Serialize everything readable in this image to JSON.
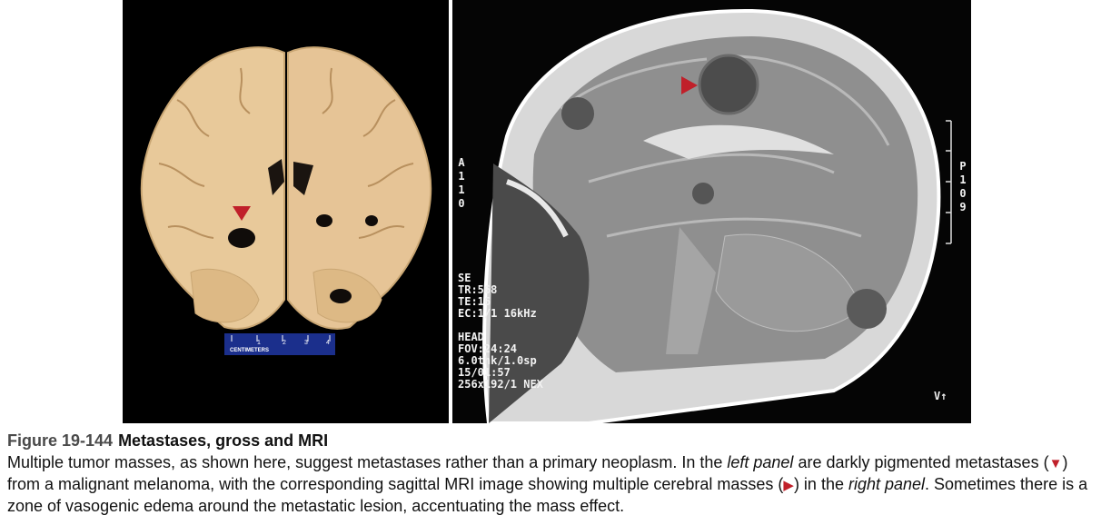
{
  "figure": {
    "number": "Figure 19-144",
    "title": "Metastases, gross and MRI"
  },
  "caption": {
    "part1": "Multiple tumor masses, as shown here, suggest metastases rather than a primary neoplasm. In the ",
    "left_panel": "left  panel",
    "part2": " are darkly pigmented metastases (",
    "down_marker": "▼",
    "part3": ") from a malignant melanoma, with the corresponding sagittal MRI image showing multiple cerebral masses (",
    "right_marker": "▶",
    "part4": ") in the ",
    "right_panel": "right  panel",
    "part5": ". Sometimes there is a zone of vasogenic edema around the metastatic lesion, accentuating the mass effect."
  },
  "left_photo": {
    "scale_label": "CENTIMETERS",
    "scale_ticks": [
      "1",
      "2",
      "3",
      "4"
    ]
  },
  "mri": {
    "sequence_lines": "SE\nTR:568\nTE:16\nEC:1/1 16kHz\n\nHEAD\nFOV:24:24\n6.0thk/1.0sp\n15/01:57\n256x192/1 NEX",
    "left_label": "A\n1\n1\n0",
    "right_label": "P\n1\n0\n9",
    "orientation": "V↑"
  },
  "colors": {
    "marker_red": "#c0202a",
    "brain_tissue": "#e8c99a",
    "background": "#000000"
  }
}
